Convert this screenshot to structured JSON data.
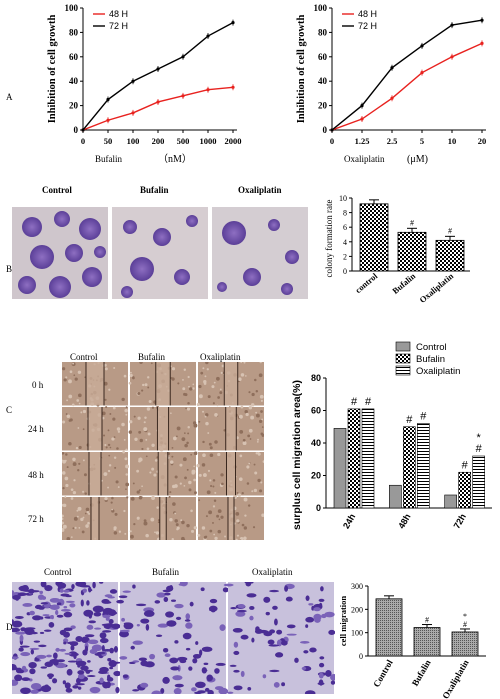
{
  "panels": {
    "A": "A",
    "B": "B",
    "C": "C",
    "D": "D"
  },
  "colors": {
    "h48": "#e8221f",
    "h72": "#000000",
    "purple": "#6b4db0",
    "brown": "#b89a86"
  },
  "chart_data": [
    {
      "type": "line",
      "ylabel": "Inhibition of cell growth",
      "xlabel": "Bufalin",
      "xunit": "（nM）",
      "categories": [
        "0",
        "50",
        "100",
        "200",
        "500",
        "1000",
        "2000"
      ],
      "ylim": [
        0,
        100
      ],
      "yticks": [
        "0",
        "20",
        "40",
        "60",
        "80",
        "100"
      ],
      "series": [
        {
          "name": "48 H",
          "color": "#e8221f",
          "values": [
            0,
            8,
            14,
            23,
            28,
            33,
            35
          ]
        },
        {
          "name": "72 H",
          "color": "#000000",
          "values": [
            0,
            25,
            40,
            50,
            60,
            77,
            88
          ]
        }
      ]
    },
    {
      "type": "line",
      "ylabel": "Inhibition of cell growth",
      "xlabel": "Oxaliplatin",
      "xunit": "(μM)",
      "categories": [
        "0",
        "1.25",
        "2.5",
        "5",
        "10",
        "20"
      ],
      "ylim": [
        0,
        100
      ],
      "yticks": [
        "0",
        "20",
        "40",
        "60",
        "80",
        "100"
      ],
      "series": [
        {
          "name": "48 H",
          "color": "#e8221f",
          "values": [
            0,
            9,
            26,
            47,
            60,
            71
          ]
        },
        {
          "name": "72 H",
          "color": "#000000",
          "values": [
            0,
            20,
            51,
            69,
            86,
            90
          ]
        }
      ]
    },
    {
      "type": "bar",
      "ylabel": "colony formation rate",
      "categories": [
        "control",
        "Bufalin",
        "Oxaliplatin"
      ],
      "values": [
        9.2,
        5.3,
        4.2
      ],
      "ylim": [
        0,
        10
      ],
      "yticks": [
        "0",
        "2",
        "4",
        "6",
        "8",
        "10"
      ],
      "annotations": [
        "",
        "#",
        "#"
      ]
    },
    {
      "type": "bar",
      "ylabel": "surplus cell migration area(%)",
      "categories": [
        "24h",
        "48h",
        "72h"
      ],
      "ylim": [
        0,
        80
      ],
      "yticks": [
        "0",
        "20",
        "40",
        "60",
        "80"
      ],
      "series": [
        {
          "name": "Control",
          "values": [
            49,
            14,
            8
          ]
        },
        {
          "name": "Bufalin",
          "values": [
            61,
            50,
            22
          ]
        },
        {
          "name": "Oxaliplatin",
          "values": [
            61,
            52,
            32
          ]
        }
      ],
      "annotations": [
        [
          "",
          "#",
          "#"
        ],
        [
          "",
          "#",
          "#"
        ],
        [
          "",
          "#",
          "*\n#"
        ]
      ]
    },
    {
      "type": "bar",
      "ylabel": "cell migration",
      "categories": [
        "Control",
        "Bufalin",
        "Oxaliplatin"
      ],
      "values": [
        245,
        122,
        103
      ],
      "ylim": [
        0,
        300
      ],
      "yticks": [
        "0",
        "100",
        "200",
        "300"
      ],
      "annotations": [
        "",
        "#",
        "*\n#"
      ]
    }
  ],
  "panel_b": {
    "image_labels": [
      "Control",
      "Bufalin",
      "Oxaliplatin"
    ]
  },
  "panel_c": {
    "column_labels": [
      "Control",
      "Bufalin",
      "Oxaliplatin"
    ],
    "row_labels": [
      "0 h",
      "24 h",
      "48 h",
      "72 h"
    ]
  },
  "panel_d": {
    "image_labels": [
      "Control",
      "Bufalin",
      "Oxaliplatin"
    ]
  }
}
